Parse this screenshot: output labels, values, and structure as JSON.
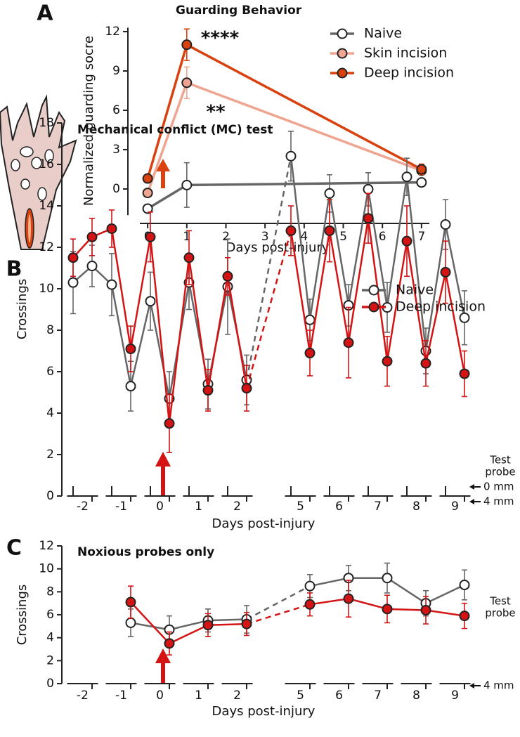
{
  "chart_data": [
    {
      "panel": "A",
      "type": "line",
      "title": "Guarding Behavior",
      "xlabel": "Days post-injury",
      "ylabel": "Normalized guarding socre",
      "x": [
        0,
        1,
        7
      ],
      "xlim": [
        -0.2,
        7.2
      ],
      "xticks": [
        0,
        1,
        2,
        3,
        4,
        5,
        6,
        7
      ],
      "ylim": [
        -2,
        12.3
      ],
      "yticks": [
        0,
        3,
        6,
        9,
        12
      ],
      "series": [
        {
          "name": "Naive",
          "color": "#666666",
          "marker_fill": "#ffffff",
          "values": [
            -1.5,
            0.3,
            0.5
          ],
          "errors": [
            0.3,
            1.7,
            0.2
          ]
        },
        {
          "name": "Skin incision",
          "color": "#f0a592",
          "marker_fill": "#f0a592",
          "values": [
            -0.3,
            8.1,
            1.4
          ],
          "errors": [
            0.3,
            1.2,
            0.3
          ]
        },
        {
          "name": "Deep incision",
          "color": "#d9410e",
          "marker_fill": "#d9410e",
          "values": [
            0.8,
            11.0,
            1.5
          ],
          "errors": [
            0.2,
            1.2,
            0.4
          ]
        }
      ],
      "annotations": [
        "****",
        "**"
      ]
    },
    {
      "panel": "B",
      "type": "pairedline",
      "title": "Mechanical conflict (MC) test",
      "xlabel": "Days post-injury",
      "ylabel": "Crossings",
      "categories": [
        -2,
        -1,
        0,
        1,
        2,
        5,
        6,
        7,
        8,
        9
      ],
      "ylim": [
        0,
        18
      ],
      "yticks": [
        0,
        2,
        4,
        6,
        8,
        10,
        12,
        14,
        16,
        18
      ],
      "probe_title": [
        "Test",
        "probe"
      ],
      "probes": [
        "0 mm",
        "4 mm"
      ],
      "series": [
        {
          "name": "Naive",
          "color": "#666666",
          "marker_fill": "#ffffff",
          "values": [
            [
              10.3,
              11.1
            ],
            [
              10.2,
              5.3
            ],
            [
              9.4,
              4.7
            ],
            [
              10.3,
              5.4
            ],
            [
              10.1,
              5.6
            ],
            [
              16.4,
              8.5
            ],
            [
              14.6,
              9.2
            ],
            [
              14.8,
              9.1
            ],
            [
              15.4,
              7.0
            ],
            [
              13.1,
              8.6
            ]
          ],
          "errors": [
            [
              1.5,
              1.0
            ],
            [
              1.5,
              1.2
            ],
            [
              1.4,
              1.3
            ],
            [
              1.3,
              1.2
            ],
            [
              2.3,
              1.2
            ],
            [
              1.2,
              1.0
            ],
            [
              0.9,
              1.0
            ],
            [
              0.8,
              1.2
            ],
            [
              0.9,
              1.1
            ],
            [
              1.2,
              1.3
            ]
          ]
        },
        {
          "name": "Deep incision",
          "color": "#d41414",
          "marker_fill": "#d41414",
          "values": [
            [
              11.5,
              12.5
            ],
            [
              12.9,
              7.1
            ],
            [
              12.5,
              3.5
            ],
            [
              11.5,
              5.1
            ],
            [
              10.6,
              5.2
            ],
            [
              12.8,
              6.9
            ],
            [
              12.8,
              7.4
            ],
            [
              13.4,
              6.5
            ],
            [
              12.3,
              6.4
            ],
            [
              10.8,
              5.9
            ]
          ],
          "errors": [
            [
              0.9,
              0.9
            ],
            [
              0.9,
              1.1
            ],
            [
              1.2,
              1.4
            ],
            [
              1.3,
              1.0
            ],
            [
              0.9,
              1.1
            ],
            [
              1.2,
              1.1
            ],
            [
              1.5,
              1.7
            ],
            [
              1.2,
              1.2
            ],
            [
              1.7,
              1.1
            ],
            [
              1.5,
              1.1
            ]
          ]
        }
      ]
    },
    {
      "panel": "C",
      "type": "line",
      "title": "Noxious probes only",
      "xlabel": "Days post-injury",
      "ylabel": "Crossings",
      "categories": [
        -2,
        -1,
        0,
        1,
        2,
        5,
        6,
        7,
        8,
        9
      ],
      "ylim": [
        0,
        12
      ],
      "yticks": [
        0,
        2,
        4,
        6,
        8,
        10,
        12
      ],
      "probe_title": [
        "Test",
        "probe"
      ],
      "probes": [
        "4 mm"
      ],
      "series": [
        {
          "name": "Naive",
          "color": "#666666",
          "marker_fill": "#ffffff",
          "values": [
            null,
            5.3,
            4.7,
            5.5,
            5.6,
            8.5,
            9.2,
            9.2,
            7.0,
            8.6
          ],
          "errors": [
            null,
            1.2,
            1.2,
            1.0,
            1.2,
            1.0,
            1.1,
            1.3,
            1.1,
            1.3
          ]
        },
        {
          "name": "Deep incision",
          "color": "#d41414",
          "marker_fill": "#d41414",
          "values": [
            null,
            7.1,
            3.5,
            5.1,
            5.2,
            6.9,
            7.4,
            6.5,
            6.4,
            5.9
          ],
          "errors": [
            null,
            1.4,
            1.0,
            1.0,
            1.0,
            1.0,
            1.6,
            1.2,
            1.2,
            1.1
          ]
        }
      ]
    }
  ]
}
